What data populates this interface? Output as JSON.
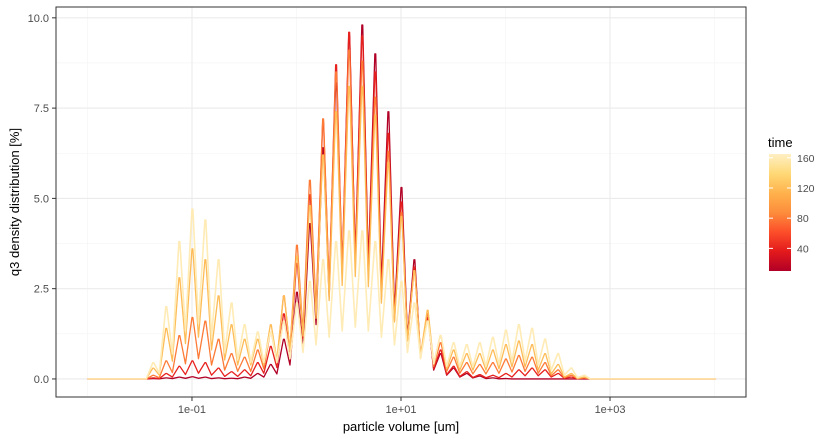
{
  "chart_data": {
    "type": "line",
    "title": "",
    "xlabel": "particle volume [um]",
    "ylabel": "q3 density distribution [%]",
    "x_scale": "log10",
    "xlim": [
      0.005,
      20000
    ],
    "ylim": [
      -0.5,
      10.3
    ],
    "x_ticks": [
      {
        "value": 0.1,
        "label": "1e-01"
      },
      {
        "value": 10,
        "label": "1e+01"
      },
      {
        "value": 1000,
        "label": "1e+03"
      }
    ],
    "y_ticks": [
      {
        "value": 0.0,
        "label": "0.0"
      },
      {
        "value": 2.5,
        "label": "2.5"
      },
      {
        "value": 5.0,
        "label": "5.0"
      },
      {
        "value": 7.5,
        "label": "7.5"
      },
      {
        "value": 10.0,
        "label": "10.0"
      }
    ],
    "grid": true,
    "theme_colors": {
      "panel_border": "#333333",
      "grid_major": "#ebebeb",
      "grid_minor": "#f3f3f3"
    },
    "legend": {
      "title": "time",
      "position": "right",
      "type": "colorbar",
      "range": [
        10,
        165
      ],
      "ticks": [
        40,
        80,
        120,
        160
      ],
      "tick_labels": [
        "40",
        "80",
        "120",
        "160"
      ],
      "colors": [
        "#b10026",
        "#e31a1c",
        "#fc4e2a",
        "#fd8d3c",
        "#feb24c",
        "#fed976",
        "#ffefc4"
      ]
    },
    "x_bins": [
      0.01,
      0.0133,
      0.0178,
      0.0237,
      0.0316,
      0.0422,
      0.0562,
      0.075,
      0.1,
      0.133,
      0.178,
      0.237,
      0.316,
      0.422,
      0.562,
      0.75,
      1.0,
      1.33,
      1.78,
      2.37,
      3.16,
      4.22,
      5.62,
      7.5,
      10,
      13.3,
      17.8,
      23.7,
      31.6,
      42.2,
      56.2,
      75,
      100,
      133,
      178,
      237,
      316,
      422,
      562,
      750,
      1000,
      1330,
      1780,
      2370,
      3160,
      4220,
      5620,
      7500,
      10000
    ],
    "series": [
      {
        "time": 10,
        "values": [
          0,
          0,
          0,
          0,
          0,
          0.01,
          0.03,
          0.05,
          0.06,
          0.05,
          0.03,
          0.02,
          0.05,
          0.15,
          0.4,
          1.1,
          2.4,
          4.3,
          6.4,
          8.2,
          9.5,
          9.8,
          9.0,
          7.4,
          5.3,
          3.3,
          1.7,
          0.7,
          0.3,
          0.15,
          0.08,
          0.03,
          0.01,
          0,
          0,
          0,
          0,
          0,
          0,
          0,
          0,
          0,
          0,
          0,
          0,
          0,
          0,
          0,
          0
        ]
      },
      {
        "time": 40,
        "values": [
          0,
          0,
          0,
          0,
          0,
          0.03,
          0.15,
          0.35,
          0.5,
          0.45,
          0.3,
          0.2,
          0.25,
          0.45,
          0.9,
          1.8,
          3.2,
          5.1,
          7.1,
          8.7,
          9.6,
          9.5,
          8.5,
          6.8,
          4.9,
          3.1,
          1.7,
          0.8,
          0.35,
          0.2,
          0.12,
          0.1,
          0.15,
          0.25,
          0.3,
          0.25,
          0.15,
          0.05,
          0.02,
          0,
          0,
          0,
          0,
          0,
          0,
          0,
          0,
          0,
          0
        ]
      },
      {
        "time": 80,
        "values": [
          0,
          0,
          0,
          0,
          0,
          0.1,
          0.5,
          1.2,
          1.7,
          1.6,
          1.1,
          0.7,
          0.6,
          0.8,
          1.3,
          2.3,
          3.7,
          5.5,
          7.2,
          8.5,
          9.1,
          8.8,
          7.8,
          6.3,
          4.6,
          3.0,
          1.8,
          1.0,
          0.6,
          0.45,
          0.4,
          0.45,
          0.55,
          0.65,
          0.6,
          0.45,
          0.25,
          0.1,
          0.03,
          0,
          0,
          0,
          0,
          0,
          0,
          0,
          0,
          0,
          0
        ]
      },
      {
        "time": 120,
        "values": [
          0,
          0,
          0,
          0,
          0,
          0.3,
          1.4,
          2.8,
          3.6,
          3.3,
          2.3,
          1.5,
          1.1,
          1.1,
          1.5,
          2.3,
          3.4,
          4.8,
          6.2,
          7.4,
          8.1,
          8.1,
          7.3,
          6.0,
          4.5,
          3.0,
          1.9,
          1.2,
          0.8,
          0.7,
          0.7,
          0.8,
          0.95,
          1.05,
          0.95,
          0.7,
          0.4,
          0.15,
          0.05,
          0,
          0,
          0,
          0,
          0,
          0,
          0,
          0,
          0,
          0
        ]
      },
      {
        "time": 160,
        "values": [
          0,
          0,
          0,
          0,
          0,
          0.45,
          2.0,
          3.8,
          4.7,
          4.4,
          3.3,
          2.1,
          1.5,
          1.3,
          1.3,
          1.6,
          2.1,
          2.7,
          3.3,
          3.8,
          4.1,
          4.1,
          3.8,
          3.3,
          2.7,
          2.1,
          1.6,
          1.2,
          1.0,
          0.95,
          1.0,
          1.15,
          1.35,
          1.5,
          1.4,
          1.1,
          0.7,
          0.3,
          0.1,
          0,
          0,
          0,
          0,
          0,
          0,
          0,
          0,
          0,
          0
        ]
      }
    ]
  }
}
